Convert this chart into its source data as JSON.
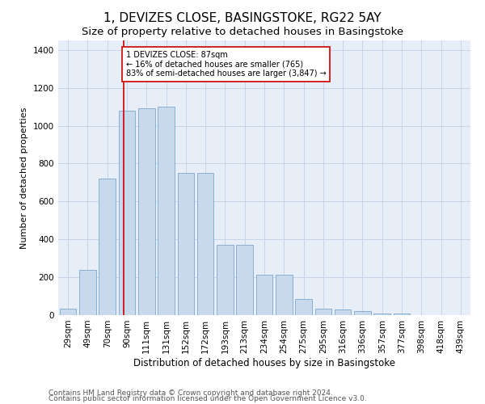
{
  "title": "1, DEVIZES CLOSE, BASINGSTOKE, RG22 5AY",
  "subtitle": "Size of property relative to detached houses in Basingstoke",
  "xlabel": "Distribution of detached houses by size in Basingstoke",
  "ylabel": "Number of detached properties",
  "footer1": "Contains HM Land Registry data © Crown copyright and database right 2024.",
  "footer2": "Contains public sector information licensed under the Open Government Licence v3.0.",
  "bar_labels": [
    "29sqm",
    "49sqm",
    "70sqm",
    "90sqm",
    "111sqm",
    "131sqm",
    "152sqm",
    "172sqm",
    "193sqm",
    "213sqm",
    "234sqm",
    "254sqm",
    "275sqm",
    "295sqm",
    "316sqm",
    "336sqm",
    "357sqm",
    "377sqm",
    "398sqm",
    "418sqm",
    "439sqm"
  ],
  "bar_values": [
    35,
    240,
    720,
    1080,
    1090,
    1100,
    750,
    750,
    370,
    370,
    215,
    215,
    85,
    35,
    30,
    20,
    10,
    10,
    2,
    2,
    2
  ],
  "bar_color": "#c9d9ed",
  "bar_edge_color": "#8aafd0",
  "vline_x": 2.82,
  "vline_color": "#cc0000",
  "annotation_text": "1 DEVIZES CLOSE: 87sqm\n← 16% of detached houses are smaller (765)\n83% of semi-detached houses are larger (3,847) →",
  "annotation_box_color": "#ffffff",
  "annotation_box_edge": "#cc0000",
  "ylim": [
    0,
    1450
  ],
  "yticks": [
    0,
    200,
    400,
    600,
    800,
    1000,
    1200,
    1400
  ],
  "grid_color": "#c8d4e8",
  "bg_color": "#e8eef8",
  "title_fontsize": 11,
  "subtitle_fontsize": 9.5,
  "xlabel_fontsize": 8.5,
  "ylabel_fontsize": 8,
  "tick_fontsize": 7.5,
  "footer_fontsize": 6.5
}
